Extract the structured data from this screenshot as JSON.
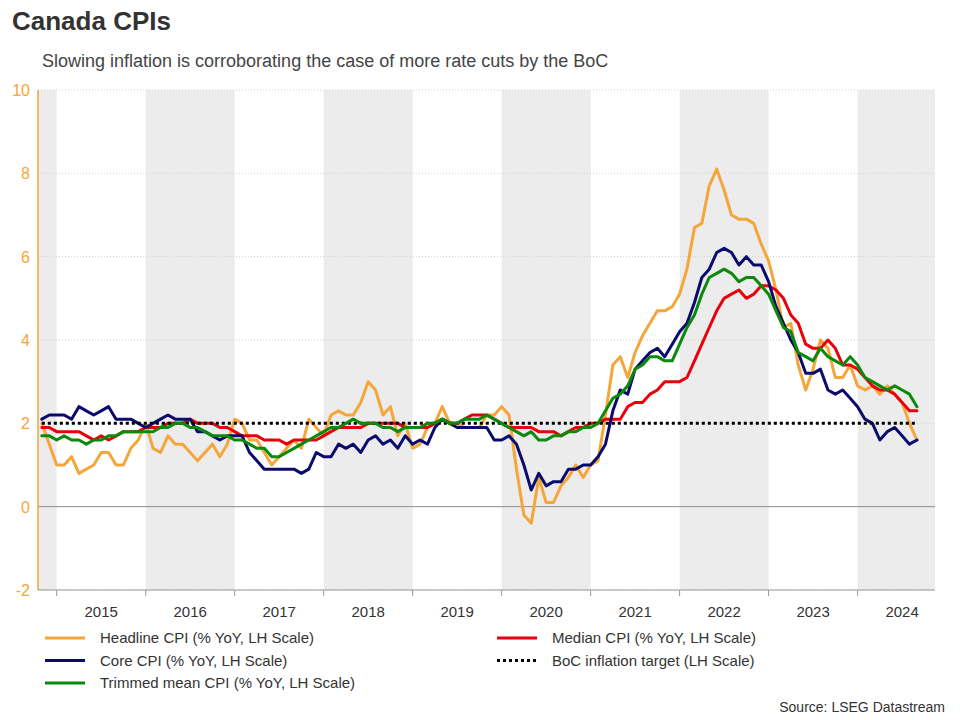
{
  "chart_data": {
    "type": "line",
    "title": "Canada CPIs",
    "subtitle": "Slowing inflation is corroborating the case of more rate cuts by the BoC",
    "source": "Source: LSEG Datastream",
    "legend": "bottom",
    "grid": true,
    "xlim": [
      2014.79,
      2024.87
    ],
    "xticks": [
      {
        "value": 2015.5,
        "label": "2015"
      },
      {
        "value": 2016.5,
        "label": "2016"
      },
      {
        "value": 2017.5,
        "label": "2017"
      },
      {
        "value": 2018.5,
        "label": "2018"
      },
      {
        "value": 2019.5,
        "label": "2019"
      },
      {
        "value": 2020.5,
        "label": "2020"
      },
      {
        "value": 2021.5,
        "label": "2021"
      },
      {
        "value": 2022.5,
        "label": "2022"
      },
      {
        "value": 2023.5,
        "label": "2023"
      },
      {
        "value": 2024.5,
        "label": "2024"
      }
    ],
    "ylim": [
      -2,
      10
    ],
    "yticks": [
      -2,
      0,
      2,
      4,
      6,
      8,
      10
    ],
    "x": [
      2014.833,
      2014.917,
      2015,
      2015.083,
      2015.167,
      2015.25,
      2015.333,
      2015.417,
      2015.5,
      2015.583,
      2015.667,
      2015.75,
      2015.833,
      2015.917,
      2016,
      2016.083,
      2016.167,
      2016.25,
      2016.333,
      2016.417,
      2016.5,
      2016.583,
      2016.667,
      2016.75,
      2016.833,
      2016.917,
      2017,
      2017.083,
      2017.167,
      2017.25,
      2017.333,
      2017.417,
      2017.5,
      2017.583,
      2017.667,
      2017.75,
      2017.833,
      2017.917,
      2018,
      2018.083,
      2018.167,
      2018.25,
      2018.333,
      2018.417,
      2018.5,
      2018.583,
      2018.667,
      2018.75,
      2018.833,
      2018.917,
      2019,
      2019.083,
      2019.167,
      2019.25,
      2019.333,
      2019.417,
      2019.5,
      2019.583,
      2019.667,
      2019.75,
      2019.833,
      2019.917,
      2020,
      2020.083,
      2020.167,
      2020.25,
      2020.333,
      2020.417,
      2020.5,
      2020.583,
      2020.667,
      2020.75,
      2020.833,
      2020.917,
      2021,
      2021.083,
      2021.167,
      2021.25,
      2021.333,
      2021.417,
      2021.5,
      2021.583,
      2021.667,
      2021.75,
      2021.833,
      2021.917,
      2022,
      2022.083,
      2022.167,
      2022.25,
      2022.333,
      2022.417,
      2022.5,
      2022.583,
      2022.667,
      2022.75,
      2022.833,
      2022.917,
      2023,
      2023.083,
      2023.167,
      2023.25,
      2023.333,
      2023.417,
      2023.5,
      2023.583,
      2023.667,
      2023.75,
      2023.833,
      2023.917,
      2024,
      2024.083,
      2024.167,
      2024.25,
      2024.333,
      2024.417,
      2024.5,
      2024.583,
      2024.667
    ],
    "series": [
      {
        "name": "Headline CPI (% YoY, LH Scale)",
        "color": "#f5a63a",
        "line_style": "solid",
        "values": [
          2.0,
          1.5,
          1.0,
          1.0,
          1.2,
          0.8,
          0.9,
          1.0,
          1.3,
          1.3,
          1.0,
          1.0,
          1.4,
          1.6,
          2.0,
          1.4,
          1.3,
          1.7,
          1.5,
          1.5,
          1.3,
          1.1,
          1.3,
          1.5,
          1.2,
          1.5,
          2.1,
          2.0,
          1.6,
          1.6,
          1.3,
          1.0,
          1.2,
          1.4,
          1.6,
          1.4,
          2.1,
          1.9,
          1.7,
          2.2,
          2.3,
          2.2,
          2.2,
          2.5,
          3.0,
          2.8,
          2.2,
          2.4,
          1.7,
          2.0,
          1.4,
          1.5,
          1.9,
          2.0,
          2.4,
          2.0,
          2.0,
          1.9,
          1.9,
          1.9,
          2.2,
          2.2,
          2.4,
          2.2,
          0.9,
          -0.2,
          -0.4,
          0.7,
          0.1,
          0.1,
          0.5,
          0.7,
          1.0,
          0.7,
          1.0,
          1.1,
          2.2,
          3.4,
          3.6,
          3.1,
          3.7,
          4.1,
          4.4,
          4.7,
          4.7,
          4.8,
          5.1,
          5.7,
          6.7,
          6.8,
          7.7,
          8.1,
          7.6,
          7.0,
          6.9,
          6.9,
          6.8,
          6.3,
          5.9,
          5.2,
          4.3,
          4.4,
          3.4,
          2.8,
          3.3,
          4.0,
          3.8,
          3.1,
          3.1,
          3.4,
          2.9,
          2.8,
          2.9,
          2.7,
          2.9,
          2.7,
          2.5,
          2.0,
          1.6
        ]
      },
      {
        "name": "Median CPI (% YoY, LH Scale)",
        "color": "#e8000b",
        "line_style": "solid",
        "values": [
          1.9,
          1.9,
          1.8,
          1.8,
          1.8,
          1.8,
          1.7,
          1.6,
          1.7,
          1.6,
          1.7,
          1.8,
          1.8,
          1.8,
          1.9,
          1.9,
          1.9,
          2.0,
          2.0,
          2.0,
          2.1,
          2.0,
          2.0,
          2.0,
          1.9,
          1.9,
          1.8,
          1.7,
          1.7,
          1.7,
          1.6,
          1.6,
          1.6,
          1.5,
          1.6,
          1.6,
          1.6,
          1.6,
          1.7,
          1.8,
          1.9,
          1.9,
          1.9,
          1.9,
          2.0,
          2.0,
          2.0,
          2.0,
          2.0,
          1.9,
          1.9,
          1.9,
          1.9,
          2.0,
          2.1,
          2.0,
          2.0,
          2.1,
          2.2,
          2.2,
          2.2,
          2.1,
          2.0,
          1.9,
          1.9,
          1.9,
          1.9,
          1.8,
          1.8,
          1.8,
          1.7,
          1.8,
          1.9,
          1.9,
          2.0,
          2.0,
          2.1,
          2.1,
          2.1,
          2.4,
          2.5,
          2.5,
          2.7,
          2.8,
          3.0,
          3.0,
          3.0,
          3.1,
          3.5,
          3.9,
          4.3,
          4.7,
          5.0,
          5.1,
          5.2,
          5.0,
          5.1,
          5.3,
          5.3,
          5.2,
          5.0,
          4.6,
          4.4,
          3.9,
          3.8,
          3.8,
          4.0,
          3.8,
          3.4,
          3.4,
          3.3,
          3.1,
          2.9,
          2.8,
          2.8,
          2.7,
          2.5,
          2.3,
          2.3
        ]
      },
      {
        "name": "Core CPI (% YoY, LH Scale)",
        "color": "#0b0b6e",
        "line_style": "solid",
        "values": [
          2.1,
          2.2,
          2.2,
          2.2,
          2.1,
          2.4,
          2.3,
          2.2,
          2.3,
          2.4,
          2.1,
          2.1,
          2.1,
          2.0,
          1.9,
          2.0,
          2.1,
          2.2,
          2.1,
          2.1,
          2.1,
          1.8,
          1.8,
          1.7,
          1.6,
          1.7,
          1.7,
          1.7,
          1.3,
          1.1,
          0.9,
          0.9,
          0.9,
          0.9,
          0.9,
          0.8,
          0.9,
          1.3,
          1.2,
          1.2,
          1.5,
          1.4,
          1.5,
          1.3,
          1.6,
          1.7,
          1.5,
          1.6,
          1.4,
          1.7,
          1.5,
          1.6,
          1.5,
          1.9,
          2.1,
          2.0,
          1.9,
          1.9,
          1.9,
          1.9,
          1.9,
          1.6,
          1.6,
          1.7,
          1.5,
          1.0,
          0.4,
          0.8,
          0.5,
          0.6,
          0.6,
          0.9,
          0.9,
          1.0,
          1.0,
          1.2,
          1.5,
          2.3,
          2.8,
          2.7,
          3.3,
          3.5,
          3.7,
          3.8,
          3.6,
          3.9,
          4.2,
          4.4,
          4.9,
          5.5,
          5.7,
          6.1,
          6.2,
          6.1,
          5.8,
          6.0,
          5.8,
          5.8,
          5.4,
          4.8,
          4.4,
          4.0,
          3.7,
          3.2,
          3.2,
          3.3,
          2.8,
          2.7,
          2.8,
          2.6,
          2.4,
          2.1,
          2.0,
          1.6,
          1.8,
          1.9,
          1.7,
          1.5,
          1.6
        ]
      },
      {
        "name": "BoC inflation target (LH Scale)",
        "color": "#000000",
        "line_style": "dotted",
        "values": [
          2,
          2,
          2,
          2,
          2,
          2,
          2,
          2,
          2,
          2,
          2,
          2,
          2,
          2,
          2,
          2,
          2,
          2,
          2,
          2,
          2,
          2,
          2,
          2,
          2,
          2,
          2,
          2,
          2,
          2,
          2,
          2,
          2,
          2,
          2,
          2,
          2,
          2,
          2,
          2,
          2,
          2,
          2,
          2,
          2,
          2,
          2,
          2,
          2,
          2,
          2,
          2,
          2,
          2,
          2,
          2,
          2,
          2,
          2,
          2,
          2,
          2,
          2,
          2,
          2,
          2,
          2,
          2,
          2,
          2,
          2,
          2,
          2,
          2,
          2,
          2,
          2,
          2,
          2,
          2,
          2,
          2,
          2,
          2,
          2,
          2,
          2,
          2,
          2,
          2,
          2,
          2,
          2,
          2,
          2,
          2,
          2,
          2,
          2,
          2,
          2,
          2,
          2,
          2,
          2,
          2,
          2,
          2,
          2,
          2,
          2,
          2,
          2,
          2,
          2,
          2,
          2,
          2,
          2
        ]
      },
      {
        "name": "Trimmed mean CPI (% YoY, LH Scale)",
        "color": "#0a8a0a",
        "line_style": "solid",
        "values": [
          1.7,
          1.7,
          1.6,
          1.7,
          1.6,
          1.6,
          1.5,
          1.6,
          1.6,
          1.7,
          1.7,
          1.8,
          1.8,
          1.8,
          1.8,
          1.8,
          1.9,
          1.9,
          2.0,
          2.0,
          1.9,
          1.9,
          1.8,
          1.7,
          1.7,
          1.7,
          1.6,
          1.6,
          1.5,
          1.4,
          1.4,
          1.2,
          1.2,
          1.3,
          1.4,
          1.5,
          1.6,
          1.7,
          1.8,
          1.9,
          1.9,
          2.0,
          2.1,
          2.0,
          2.0,
          2.0,
          1.9,
          1.9,
          1.8,
          1.9,
          1.9,
          1.9,
          2.0,
          2.0,
          2.1,
          2.0,
          2.0,
          2.1,
          2.1,
          2.1,
          2.2,
          2.1,
          2.0,
          1.9,
          1.8,
          1.7,
          1.8,
          1.6,
          1.6,
          1.7,
          1.7,
          1.8,
          1.8,
          1.9,
          1.9,
          2.0,
          2.3,
          2.6,
          2.7,
          2.9,
          3.3,
          3.4,
          3.6,
          3.6,
          3.5,
          3.5,
          3.9,
          4.3,
          4.6,
          5.1,
          5.5,
          5.6,
          5.7,
          5.6,
          5.4,
          5.5,
          5.5,
          5.3,
          5.1,
          4.7,
          4.3,
          4.2,
          3.7,
          3.6,
          3.5,
          3.8,
          3.6,
          3.5,
          3.4,
          3.6,
          3.4,
          3.1,
          3.0,
          2.9,
          2.8,
          2.9,
          2.8,
          2.7,
          2.4
        ]
      }
    ]
  }
}
